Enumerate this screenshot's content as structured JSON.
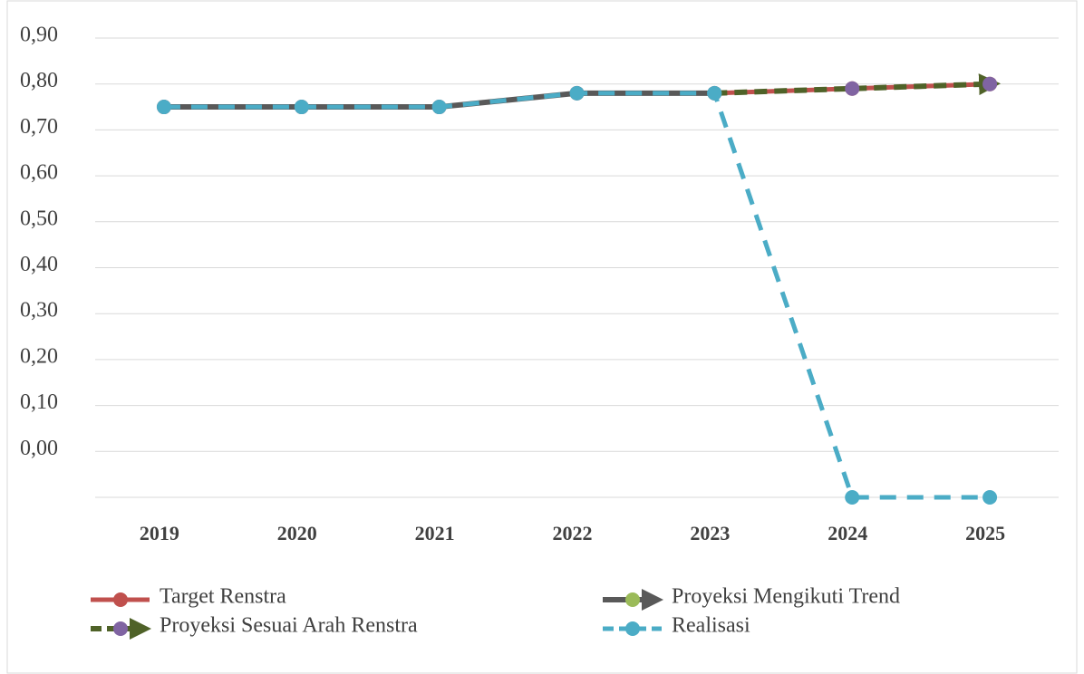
{
  "chart_data": {
    "type": "line",
    "categories": [
      "2019",
      "2020",
      "2021",
      "2022",
      "2023",
      "2024",
      "2025"
    ],
    "series": [
      {
        "name": "Target Renstra",
        "color": "#c0504d",
        "values": [
          0.75,
          0.75,
          0.75,
          0.78,
          0.78,
          0.79,
          0.8
        ]
      },
      {
        "name": "Proyeksi Mengikuti Trend",
        "color": "#595959",
        "values": [
          0.75,
          0.75,
          0.75,
          0.78,
          0.78,
          null,
          null
        ]
      },
      {
        "name": "Proyeksi Sesuai Arah Renstra",
        "color": "#4f6228",
        "values": [
          null,
          null,
          null,
          null,
          0.78,
          0.79,
          0.8
        ]
      },
      {
        "name": "Realisasi",
        "color": "#4bacc6",
        "values": [
          0.75,
          0.75,
          0.75,
          0.78,
          0.78,
          -0.1,
          -0.1
        ]
      }
    ],
    "ylim": [
      -0.1,
      0.9
    ],
    "yticks": [
      {
        "value": 0,
        "label": "0,00"
      },
      {
        "value": 0.1,
        "label": "0,10"
      },
      {
        "value": 0.2,
        "label": "0,20"
      },
      {
        "value": 0.3,
        "label": "0,30"
      },
      {
        "value": 0.4,
        "label": "0,40"
      },
      {
        "value": 0.5,
        "label": "0,50"
      },
      {
        "value": 0.6,
        "label": "0,60"
      },
      {
        "value": 0.7,
        "label": "0,70"
      },
      {
        "value": 0.8,
        "label": "0,80"
      },
      {
        "value": 0.9,
        "label": "0,90"
      }
    ],
    "grid": true
  }
}
